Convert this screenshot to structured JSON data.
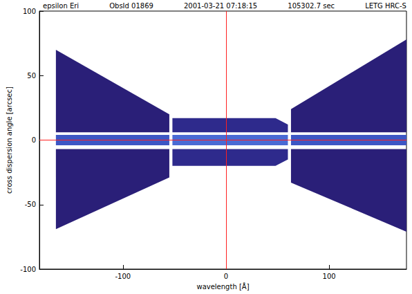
{
  "chart_data": {
    "type": "polygon",
    "title": [
      "epsilon Eri",
      "ObsId 01869",
      "2001-03-21 07:18:15",
      "105302.7 sec",
      "LETG HRC-S"
    ],
    "xlabel": "wavelength [Å]",
    "ylabel": "cross dispersion angle [arcsec]",
    "xlim": [
      -181,
      175
    ],
    "ylim": [
      -100,
      100
    ],
    "xticks": [
      -100,
      0,
      100
    ],
    "yticks": [
      -100,
      -50,
      0,
      50,
      100
    ],
    "grid": false,
    "regions": [
      {
        "polygon": [
          [
            -165,
            70
          ],
          [
            -55,
            20
          ],
          [
            -55,
            6
          ],
          [
            -165,
            6
          ]
        ],
        "color": "#2a1f78"
      },
      {
        "polygon": [
          [
            -165,
            -7
          ],
          [
            -55,
            -7
          ],
          [
            -55,
            -29
          ],
          [
            -165,
            -69
          ]
        ],
        "color": "#2a1f78"
      },
      {
        "polygon": [
          [
            -52,
            17
          ],
          [
            48,
            17
          ],
          [
            60,
            12
          ],
          [
            60,
            6
          ],
          [
            -52,
            6
          ]
        ],
        "color": "#2e2a8c"
      },
      {
        "polygon": [
          [
            -52,
            -7
          ],
          [
            60,
            -7
          ],
          [
            60,
            -15
          ],
          [
            48,
            -20
          ],
          [
            -52,
            -20
          ]
        ],
        "color": "#2e2a8c"
      },
      {
        "polygon": [
          [
            63,
            24
          ],
          [
            175,
            78
          ],
          [
            175,
            6
          ],
          [
            63,
            6
          ]
        ],
        "color": "#2a1f78"
      },
      {
        "polygon": [
          [
            63,
            -7
          ],
          [
            175,
            -7
          ],
          [
            175,
            -71
          ],
          [
            63,
            -33
          ]
        ],
        "color": "#2a1f78"
      },
      {
        "polygon": [
          [
            -165,
            4
          ],
          [
            -55,
            4
          ],
          [
            -55,
            -4
          ],
          [
            -165,
            -4
          ]
        ],
        "color": "#3d56c4"
      },
      {
        "polygon": [
          [
            -52,
            4
          ],
          [
            60,
            4
          ],
          [
            60,
            -4
          ],
          [
            -52,
            -4
          ]
        ],
        "color": "#4a6ad4"
      },
      {
        "polygon": [
          [
            63,
            4
          ],
          [
            175,
            4
          ],
          [
            175,
            -4
          ],
          [
            63,
            -4
          ]
        ],
        "color": "#3d56c4"
      }
    ],
    "reference_lines": {
      "x": 0,
      "y": 0,
      "color": "#ff2020"
    }
  }
}
